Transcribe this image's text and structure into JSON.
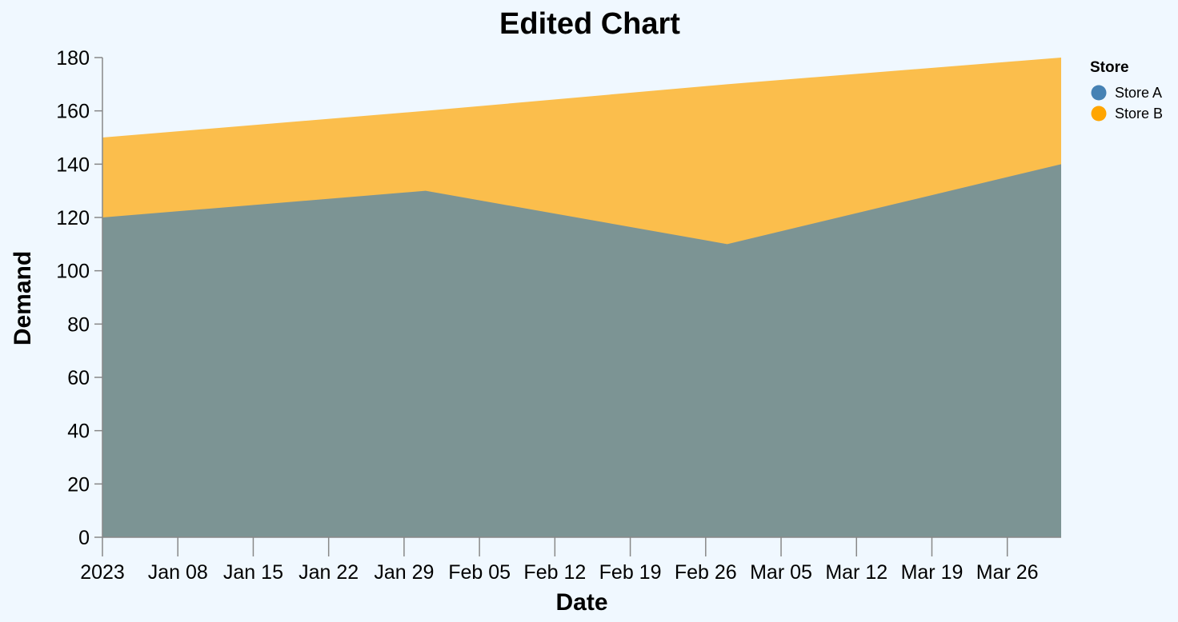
{
  "colors": {
    "background": "#f0f8ff",
    "axis": "#888888"
  },
  "chart_data": {
    "type": "area",
    "stacked": false,
    "title": "Edited Chart",
    "xlabel": "Date",
    "ylabel": "Demand",
    "x_scale": "time",
    "xlim": [
      "2023-01-01",
      "2023-04-09"
    ],
    "ylim": [
      0,
      180
    ],
    "y_ticks": [
      0,
      20,
      40,
      60,
      80,
      100,
      120,
      140,
      160,
      180
    ],
    "x_ticks": [
      {
        "date": "2023-01-01",
        "label": "2023"
      },
      {
        "date": "2023-01-08",
        "label": "Jan 08"
      },
      {
        "date": "2023-01-15",
        "label": "Jan 15"
      },
      {
        "date": "2023-01-22",
        "label": "Jan 22"
      },
      {
        "date": "2023-01-29",
        "label": "Jan 29"
      },
      {
        "date": "2023-02-05",
        "label": "Feb 05"
      },
      {
        "date": "2023-02-12",
        "label": "Feb 12"
      },
      {
        "date": "2023-02-19",
        "label": "Feb 19"
      },
      {
        "date": "2023-02-26",
        "label": "Feb 26"
      },
      {
        "date": "2023-03-05",
        "label": "Mar 05"
      },
      {
        "date": "2023-03-12",
        "label": "Mar 12"
      },
      {
        "date": "2023-03-19",
        "label": "Mar 19"
      },
      {
        "date": "2023-03-26",
        "label": "Mar 26"
      }
    ],
    "grid": false,
    "legend": {
      "title": "Store",
      "placement": "top-right"
    },
    "series": [
      {
        "name": "Store B",
        "color": "#ffa500",
        "opacity": 0.7,
        "points": [
          {
            "x": "2023-01-01",
            "y": 150
          },
          {
            "x": "2023-01-31",
            "y": 160
          },
          {
            "x": "2023-02-28",
            "y": 170
          },
          {
            "x": "2023-03-31",
            "y": 180
          }
        ]
      },
      {
        "name": "Store A",
        "color": "#4682b4",
        "opacity": 0.7,
        "points": [
          {
            "x": "2023-01-01",
            "y": 120
          },
          {
            "x": "2023-01-31",
            "y": 130
          },
          {
            "x": "2023-02-28",
            "y": 110
          },
          {
            "x": "2023-03-31",
            "y": 140
          }
        ]
      }
    ],
    "legend_order": [
      "Store A",
      "Store B"
    ],
    "overlap_color": "#d6a53a"
  }
}
